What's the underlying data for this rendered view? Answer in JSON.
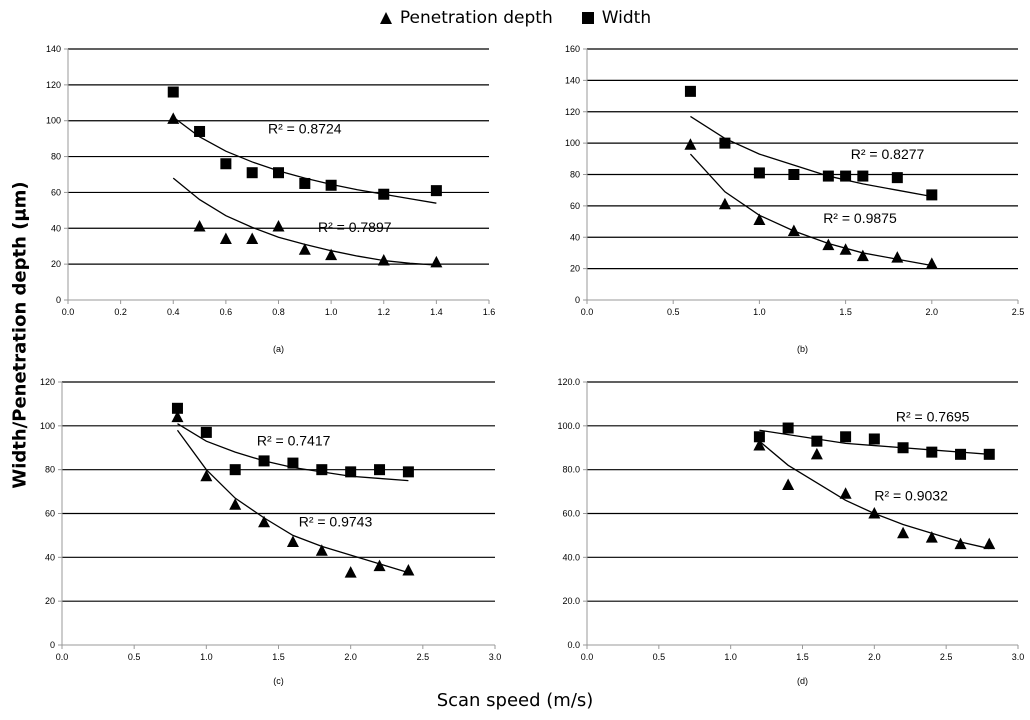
{
  "legend": [
    {
      "label": "Penetration depth",
      "marker": "triangle-icon"
    },
    {
      "label": "Width",
      "marker": "square-icon"
    }
  ],
  "ylabel": "Width/Penetration depth (µm)",
  "xlabel": "Scan speed (m/s)",
  "colors": {
    "marker": "#000000",
    "grid": "#000000",
    "axis": "#999999"
  },
  "chart_data": [
    {
      "type": "scatter",
      "panel": "(a)",
      "xlim": [
        0.0,
        1.6
      ],
      "ylim": [
        0,
        140
      ],
      "xticks": [
        0.0,
        0.2,
        0.4,
        0.6,
        0.8,
        1.0,
        1.2,
        1.4,
        1.6
      ],
      "yticks": [
        0,
        20,
        40,
        60,
        80,
        100,
        120,
        140
      ],
      "x_decimals": 1,
      "y_decimals": 0,
      "series": [
        {
          "name": "Penetration depth",
          "marker": "triangle",
          "x": [
            0.4,
            0.5,
            0.6,
            0.7,
            0.8,
            0.9,
            1.0,
            1.2,
            1.4
          ],
          "y": [
            101,
            41,
            34,
            34,
            41,
            28,
            25,
            22,
            21
          ],
          "r2": "R² = 0.7897",
          "trend": {
            "x": [
              0.4,
              0.5,
              0.6,
              0.7,
              0.8,
              0.9,
              1.0,
              1.1,
              1.2,
              1.3,
              1.4
            ],
            "y": [
              68,
              56,
              47,
              40.5,
              35,
              31,
              27.5,
              24.5,
              22,
              20.5,
              19.5
            ]
          }
        },
        {
          "name": "Width",
          "marker": "square",
          "x": [
            0.4,
            0.5,
            0.6,
            0.7,
            0.8,
            0.9,
            1.0,
            1.2,
            1.4
          ],
          "y": [
            116,
            94,
            76,
            71,
            71,
            65,
            64,
            59,
            61
          ],
          "r2": "R² = 0.8724",
          "trend": {
            "x": [
              0.4,
              0.5,
              0.6,
              0.7,
              0.8,
              0.9,
              1.0,
              1.1,
              1.2,
              1.3,
              1.4
            ],
            "y": [
              102,
              91,
              83,
              77,
              72,
              68,
              64.5,
              61.5,
              59,
              56.5,
              54
            ]
          }
        }
      ]
    },
    {
      "type": "scatter",
      "panel": "(b)",
      "xlim": [
        0.0,
        2.5
      ],
      "ylim": [
        0,
        160
      ],
      "xticks": [
        0.0,
        0.5,
        1.0,
        1.5,
        2.0,
        2.5
      ],
      "yticks": [
        0,
        20,
        40,
        60,
        80,
        100,
        120,
        140,
        160
      ],
      "x_decimals": 1,
      "y_decimals": 0,
      "series": [
        {
          "name": "Penetration depth",
          "marker": "triangle",
          "x": [
            0.6,
            0.8,
            1.0,
            1.2,
            1.4,
            1.5,
            1.6,
            1.8,
            2.0
          ],
          "y": [
            99,
            61,
            51,
            44,
            35,
            32,
            28,
            27,
            23
          ],
          "r2": "R² = 0.9875",
          "trend": {
            "x": [
              0.6,
              0.8,
              1.0,
              1.2,
              1.4,
              1.6,
              1.8,
              2.0
            ],
            "y": [
              93,
              69,
              54,
              44,
              36,
              30,
              26,
              22
            ]
          }
        },
        {
          "name": "Width",
          "marker": "square",
          "x": [
            0.6,
            0.8,
            1.0,
            1.2,
            1.4,
            1.5,
            1.6,
            1.8,
            2.0
          ],
          "y": [
            133,
            100,
            81,
            80,
            79,
            79,
            79,
            78,
            67
          ],
          "r2": "R² = 0.8277",
          "trend": {
            "x": [
              0.6,
              0.8,
              1.0,
              1.2,
              1.4,
              1.6,
              1.8,
              2.0
            ],
            "y": [
              117,
              103,
              93,
              86,
              79,
              74,
              70,
              66
            ]
          }
        }
      ]
    },
    {
      "type": "scatter",
      "panel": "(c)",
      "xlim": [
        0.0,
        3.0
      ],
      "ylim": [
        0,
        120
      ],
      "xticks": [
        0.0,
        0.5,
        1.0,
        1.5,
        2.0,
        2.5,
        3.0
      ],
      "yticks": [
        0,
        20,
        40,
        60,
        80,
        100,
        120
      ],
      "x_decimals": 1,
      "y_decimals": 0,
      "series": [
        {
          "name": "Penetration depth",
          "marker": "triangle",
          "x": [
            0.8,
            1.0,
            1.2,
            1.4,
            1.6,
            1.8,
            2.0,
            2.2,
            2.4
          ],
          "y": [
            104,
            77,
            64,
            56,
            47,
            43,
            33,
            36,
            34
          ],
          "r2": "R² = 0.9743",
          "trend": {
            "x": [
              0.8,
              1.0,
              1.2,
              1.4,
              1.6,
              1.8,
              2.0,
              2.2,
              2.4
            ],
            "y": [
              98,
              80,
              67,
              58,
              50,
              45,
              41,
              37,
              33
            ]
          }
        },
        {
          "name": "Width",
          "marker": "square",
          "x": [
            0.8,
            1.0,
            1.2,
            1.4,
            1.6,
            1.8,
            2.0,
            2.2,
            2.4
          ],
          "y": [
            108,
            97,
            80,
            84,
            83,
            80,
            79,
            80,
            79
          ],
          "r2": "R² = 0.7417",
          "trend": {
            "x": [
              0.8,
              1.0,
              1.2,
              1.4,
              1.6,
              1.8,
              2.0,
              2.2,
              2.4
            ],
            "y": [
              101,
              93,
              88,
              84,
              81,
              79,
              77,
              76,
              75
            ]
          }
        }
      ]
    },
    {
      "type": "scatter",
      "panel": "(d)",
      "xlim": [
        0.0,
        3.0
      ],
      "ylim": [
        0,
        120
      ],
      "xticks": [
        0.0,
        0.5,
        1.0,
        1.5,
        2.0,
        2.5,
        3.0
      ],
      "yticks": [
        0,
        20,
        40,
        60,
        80,
        100,
        120
      ],
      "x_decimals": 1,
      "y_decimals": 1,
      "series": [
        {
          "name": "Penetration depth",
          "marker": "triangle",
          "x": [
            1.2,
            1.4,
            1.6,
            1.8,
            2.0,
            2.2,
            2.4,
            2.6,
            2.8
          ],
          "y": [
            91,
            73,
            87,
            69,
            60,
            51,
            49,
            46,
            46
          ],
          "r2": "R² = 0.9032",
          "trend": {
            "x": [
              1.2,
              1.4,
              1.6,
              1.8,
              2.0,
              2.2,
              2.4,
              2.6,
              2.8
            ],
            "y": [
              93,
              82,
              74,
              66,
              60,
              55,
              51,
              47,
              44
            ]
          }
        },
        {
          "name": "Width",
          "marker": "square",
          "x": [
            1.2,
            1.4,
            1.6,
            1.8,
            2.0,
            2.2,
            2.4,
            2.6,
            2.8
          ],
          "y": [
            95,
            99,
            93,
            95,
            94,
            90,
            88,
            87,
            87
          ],
          "r2": "R² = 0.7695",
          "trend": {
            "x": [
              1.2,
              1.4,
              1.6,
              1.8,
              2.0,
              2.2,
              2.4,
              2.6,
              2.8
            ],
            "y": [
              98,
              96,
              94,
              92,
              91,
              90,
              89,
              88,
              87
            ]
          }
        }
      ]
    }
  ]
}
